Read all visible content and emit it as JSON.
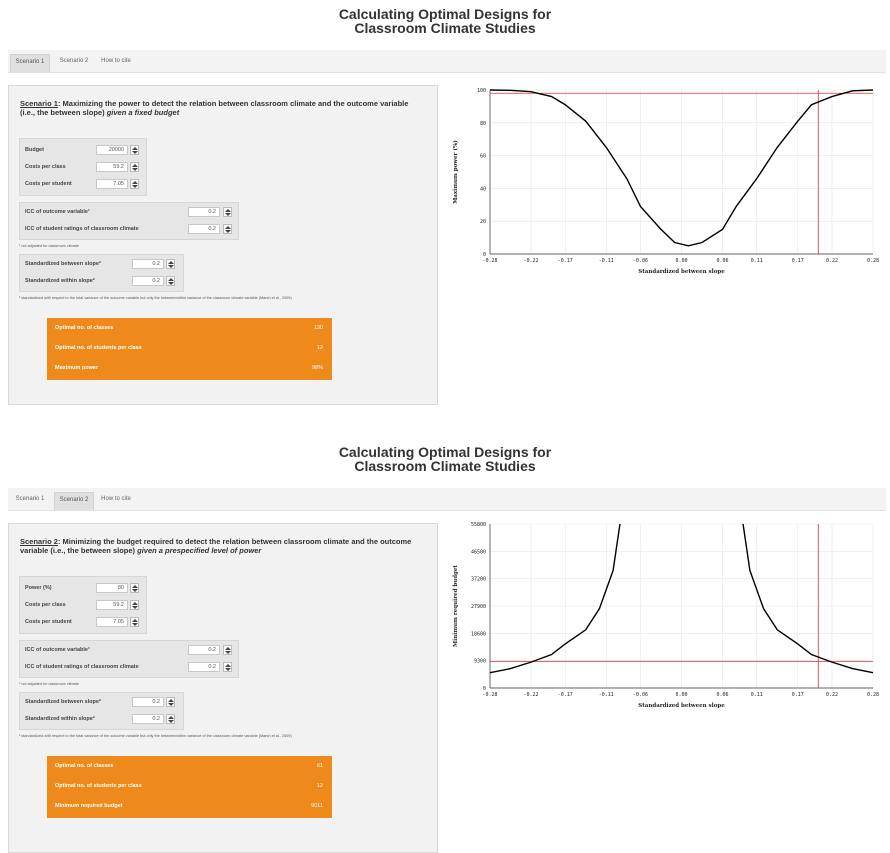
{
  "screens": [
    {
      "title_line1": "Calculating Optimal Designs for",
      "title_line2": "Classroom Climate Studies",
      "tabs": [
        "Scenario 1",
        "Scenario 2",
        "How to cite"
      ],
      "active_tab": 0,
      "heading_scenario": "Scenario 1",
      "heading_text": ": Maximizing the power to detect the relation between classroom climate and the outcome variable (i.e., the between slope) ",
      "heading_italic": "given a fixed budget",
      "inputs1": [
        {
          "label": "Budget",
          "value": "20000"
        },
        {
          "label": "Costs per class",
          "value": "59.2"
        },
        {
          "label": "Costs per student",
          "value": "7.05"
        }
      ],
      "inputs2": [
        {
          "label": "ICC of outcome variable¹",
          "value": "0.2"
        },
        {
          "label": "ICC of student ratings of classroom climate",
          "value": "0.2"
        }
      ],
      "note1": "¹ not adjusted for classroom climate",
      "inputs3": [
        {
          "label": "Standardized between slope²",
          "value": "0.2"
        },
        {
          "label": "Standardized within slope²",
          "value": "0.2"
        }
      ],
      "note2": "² standardized with respect to the total variance of the outcome variable but only the between/within variance of the classroom climate variable (Marsh et al., 2009)",
      "results": [
        {
          "label": "Optimal no. of classes",
          "value": "130"
        },
        {
          "label": "Optimal no. of students per class",
          "value": "12"
        },
        {
          "label": "Maximum power",
          "value": "98%"
        }
      ]
    },
    {
      "title_line1": "Calculating Optimal Designs for",
      "title_line2": "Classroom Climate Studies",
      "tabs": [
        "Scenario 1",
        "Scenario 2",
        "How to cite"
      ],
      "active_tab": 1,
      "heading_scenario": "Scenario 2",
      "heading_text": ": Minimizing the budget required to detect the relation between classroom climate and the outcome variable (i.e., the between slope) ",
      "heading_italic": "given a prespecified level of power",
      "inputs1": [
        {
          "label": "Power (%)",
          "value": "80"
        },
        {
          "label": "Costs per class",
          "value": "59.2"
        },
        {
          "label": "Costs per student",
          "value": "7.05"
        }
      ],
      "inputs2": [
        {
          "label": "ICC of outcome variable¹",
          "value": "0.2"
        },
        {
          "label": "ICC of student ratings of classroom climate",
          "value": "0.2"
        }
      ],
      "note1": "¹ not adjusted for classroom climate",
      "inputs3": [
        {
          "label": "Standardized between slope²",
          "value": "0.2"
        },
        {
          "label": "Standardized within slope²",
          "value": "0.2"
        }
      ],
      "note2": "² standardized with respect to the total variance of the outcome variable but only the between/within variance of the classroom climate variable (Marsh et al., 2009)",
      "results": [
        {
          "label": "Optimal no. of classes",
          "value": "61"
        },
        {
          "label": "Optimal no. of students per class",
          "value": "12"
        },
        {
          "label": "Minimum required budget",
          "value": "9011"
        }
      ]
    }
  ],
  "chart_data": [
    {
      "type": "line",
      "xlabel": "Standardized between slope",
      "ylabel": "Maximum power (%)",
      "xticks": [
        "-0.28",
        "-0.22",
        "-0.17",
        "-0.11",
        "-0.06",
        "0.00",
        "0.06",
        "0.11",
        "0.17",
        "0.22",
        "0.28"
      ],
      "yticks": [
        "0",
        "20",
        "40",
        "60",
        "80",
        "100"
      ],
      "xlim": [
        -0.28,
        0.28
      ],
      "ylim": [
        0,
        100
      ],
      "x": [
        -0.28,
        -0.25,
        -0.22,
        -0.19,
        -0.17,
        -0.14,
        -0.11,
        -0.08,
        -0.06,
        -0.03,
        -0.01,
        0.01,
        0.03,
        0.06,
        0.08,
        0.11,
        0.14,
        0.17,
        0.19,
        0.22,
        0.25,
        0.28
      ],
      "y": [
        100,
        99.8,
        99,
        96,
        91,
        81,
        65,
        46,
        29,
        15,
        7,
        5,
        7,
        15,
        29,
        46,
        65,
        81,
        91,
        96,
        99.5,
        100
      ],
      "reference_x": 0.2,
      "reference_y": 98,
      "line_color": "#000000",
      "reference_color": "#e03030",
      "grid": true
    },
    {
      "type": "line",
      "xlabel": "Standardized between slope",
      "ylabel": "Minimum required budget",
      "xticks": [
        "-0.28",
        "-0.22",
        "-0.17",
        "-0.11",
        "-0.06",
        "0.00",
        "0.06",
        "0.11",
        "0.17",
        "0.22",
        "0.28"
      ],
      "yticks": [
        "0",
        "9300",
        "18600",
        "27900",
        "37200",
        "46500",
        "55800"
      ],
      "xlim": [
        -0.28,
        0.28
      ],
      "ylim": [
        0,
        55800
      ],
      "x": [
        -0.28,
        -0.25,
        -0.22,
        -0.19,
        -0.17,
        -0.14,
        -0.12,
        -0.1,
        -0.09,
        0.09,
        0.1,
        0.12,
        0.14,
        0.17,
        0.19,
        0.22,
        0.25,
        0.28
      ],
      "y": [
        5200,
        6600,
        8800,
        11400,
        15000,
        19800,
        27000,
        40000,
        55800,
        55800,
        40000,
        27000,
        19800,
        15000,
        11400,
        8800,
        6600,
        5200
      ],
      "reference_x": 0.2,
      "reference_y": 9011,
      "line_color": "#000000",
      "reference_color": "#e03030",
      "grid": true
    }
  ]
}
